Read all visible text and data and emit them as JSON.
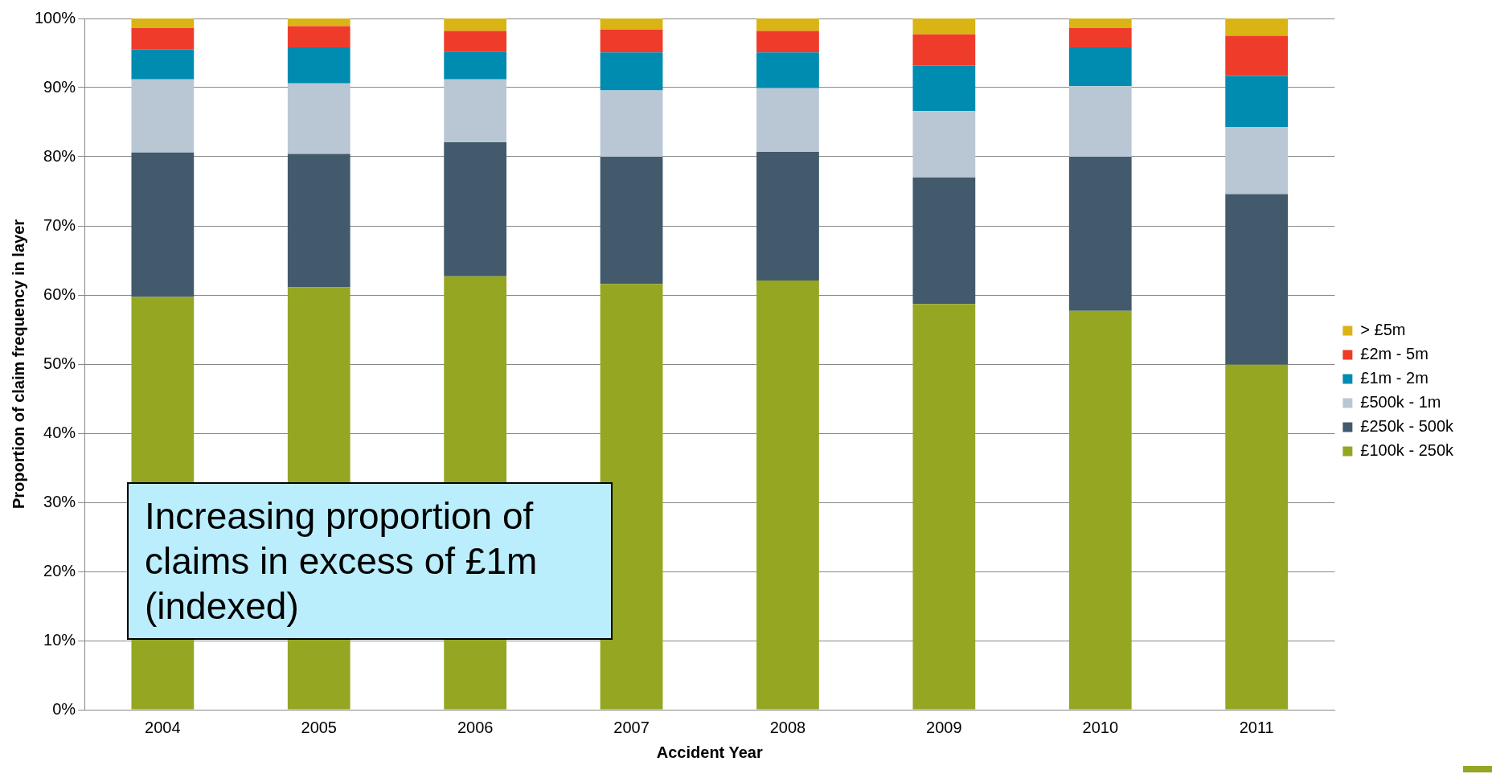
{
  "chart_data": {
    "type": "bar",
    "stacked": true,
    "xlabel": "Accident Year",
    "ylabel": "Proportion of claim frequency in layer",
    "categories": [
      "2004",
      "2005",
      "2006",
      "2007",
      "2008",
      "2009",
      "2010",
      "2011"
    ],
    "series": [
      {
        "name": "£100k - 250k",
        "color": "#95a623",
        "values": [
          59.7,
          61.1,
          62.7,
          61.6,
          62.1,
          58.7,
          57.7,
          49.9
        ]
      },
      {
        "name": "£250k - 500k",
        "color": "#425a6b",
        "values": [
          20.9,
          19.3,
          19.4,
          18.4,
          18.6,
          18.3,
          22.3,
          24.7
        ]
      },
      {
        "name": "£500k - 1m",
        "color": "#b9c7d5",
        "values": [
          10.6,
          10.2,
          9.1,
          9.6,
          9.2,
          9.6,
          10.2,
          9.7
        ]
      },
      {
        "name": "£1m - 2m",
        "color": "#008bb0",
        "values": [
          4.3,
          5.2,
          4.0,
          5.5,
          5.2,
          6.6,
          5.6,
          7.4
        ]
      },
      {
        "name": "£2m - 5m",
        "color": "#ef3b2a",
        "values": [
          3.1,
          3.1,
          3.0,
          3.3,
          3.1,
          4.5,
          2.8,
          5.8
        ]
      },
      {
        "name": "> £5m",
        "color": "#d9b414",
        "values": [
          1.4,
          1.1,
          1.8,
          1.6,
          1.8,
          2.3,
          1.4,
          2.5
        ]
      }
    ],
    "ylim": [
      0,
      100
    ],
    "yticks": [
      {
        "value": 0,
        "label": "0%"
      },
      {
        "value": 10,
        "label": "10%"
      },
      {
        "value": 20,
        "label": "20%"
      },
      {
        "value": 30,
        "label": "30%"
      },
      {
        "value": 40,
        "label": "40%"
      },
      {
        "value": 50,
        "label": "50%"
      },
      {
        "value": 60,
        "label": "60%"
      },
      {
        "value": 70,
        "label": "70%"
      },
      {
        "value": 80,
        "label": "80%"
      },
      {
        "value": 90,
        "label": "90%"
      },
      {
        "value": 100,
        "label": "100%"
      }
    ],
    "grid": "y",
    "legend": "right",
    "annotations": [
      "Increasing proportion of claims in excess of £1m (indexed)"
    ]
  }
}
